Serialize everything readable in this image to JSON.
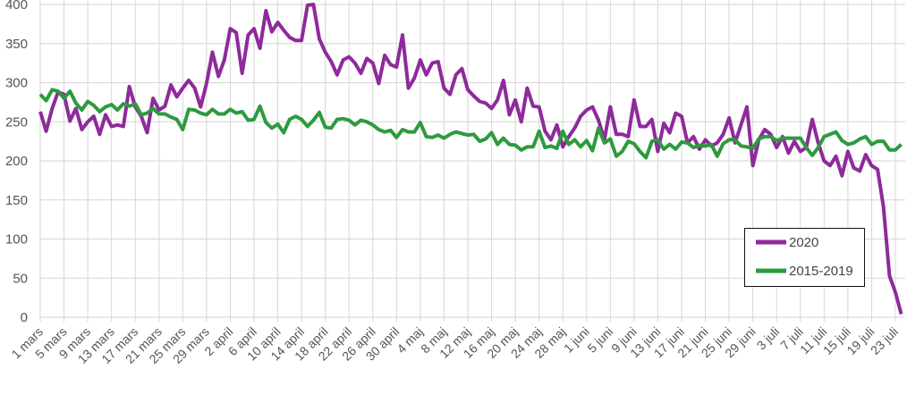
{
  "chart_data": {
    "type": "line",
    "title": "",
    "xlabel": "",
    "ylabel": "",
    "ylim": [
      0,
      400
    ],
    "yticks": [
      0,
      50,
      100,
      150,
      200,
      250,
      300,
      350,
      400
    ],
    "grid": true,
    "legend_position": "bottom-right",
    "x_tick_labels": [
      "1 mars",
      "5 mars",
      "9 mars",
      "13 mars",
      "17 mars",
      "21 mars",
      "25 mars",
      "29 mars",
      "2 april",
      "6 april",
      "10 april",
      "14 april",
      "18 april",
      "22 april",
      "26 april",
      "30 april",
      "4 maj",
      "8 maj",
      "12 maj",
      "16 maj",
      "20 maj",
      "24 maj",
      "28 maj",
      "1 juni",
      "5 juni",
      "9 juni",
      "13 juni",
      "17 juni",
      "21 juni",
      "25 juni",
      "29 juni",
      "3 juli",
      "7 juli",
      "11 juli",
      "15 juli",
      "19 juli",
      "23 juli"
    ],
    "x_tick_every_days": 4,
    "series": [
      {
        "name": "2020",
        "color": "#8e2a9b",
        "values": [
          263,
          238,
          267,
          288,
          285,
          251,
          267,
          240,
          250,
          257,
          234,
          259,
          244,
          246,
          244,
          295,
          269,
          257,
          236,
          280,
          265,
          270,
          297,
          282,
          293,
          303,
          293,
          269,
          299,
          339,
          308,
          329,
          369,
          364,
          312,
          361,
          369,
          344,
          392,
          365,
          377,
          367,
          358,
          354,
          354,
          399,
          400,
          356,
          339,
          327,
          310,
          329,
          333,
          325,
          312,
          331,
          325,
          299,
          335,
          323,
          320,
          361,
          293,
          306,
          329,
          310,
          325,
          327,
          293,
          285,
          310,
          318,
          291,
          283,
          276,
          274,
          267,
          278,
          303,
          259,
          278,
          250,
          293,
          270,
          269,
          238,
          227,
          246,
          218,
          231,
          242,
          257,
          265,
          269,
          252,
          227,
          269,
          234,
          234,
          231,
          278,
          244,
          244,
          253,
          212,
          248,
          236,
          261,
          257,
          223,
          231,
          215,
          227,
          219,
          223,
          234,
          255,
          223,
          246,
          269,
          194,
          227,
          240,
          234,
          217,
          231,
          210,
          225,
          212,
          217,
          253,
          223,
          200,
          194,
          206,
          181,
          212,
          191,
          187,
          208,
          194,
          189,
          141,
          53,
          32,
          4
        ]
      },
      {
        "name": "2015-2019",
        "color": "#2e9a3e",
        "values": [
          285,
          277,
          291,
          289,
          280,
          289,
          274,
          265,
          276,
          271,
          263,
          269,
          272,
          265,
          273,
          270,
          273,
          259,
          261,
          267,
          260,
          260,
          256,
          253,
          240,
          266,
          265,
          261,
          259,
          266,
          260,
          260,
          266,
          261,
          263,
          252,
          253,
          270,
          249,
          242,
          247,
          236,
          253,
          257,
          253,
          244,
          252,
          262,
          243,
          242,
          253,
          254,
          252,
          246,
          252,
          250,
          246,
          240,
          237,
          239,
          230,
          240,
          237,
          237,
          249,
          231,
          230,
          233,
          229,
          234,
          237,
          235,
          233,
          234,
          225,
          228,
          236,
          221,
          229,
          221,
          220,
          214,
          218,
          218,
          238,
          217,
          219,
          216,
          238,
          221,
          227,
          218,
          226,
          213,
          242,
          223,
          228,
          206,
          212,
          225,
          222,
          212,
          204,
          225,
          227,
          215,
          221,
          215,
          224,
          223,
          217,
          220,
          219,
          221,
          206,
          222,
          227,
          227,
          219,
          218,
          216,
          228,
          231,
          231,
          226,
          229,
          229,
          229,
          229,
          217,
          207,
          217,
          231,
          234,
          237,
          226,
          221,
          223,
          228,
          231,
          221,
          225,
          225,
          214,
          214,
          221
        ]
      }
    ]
  }
}
